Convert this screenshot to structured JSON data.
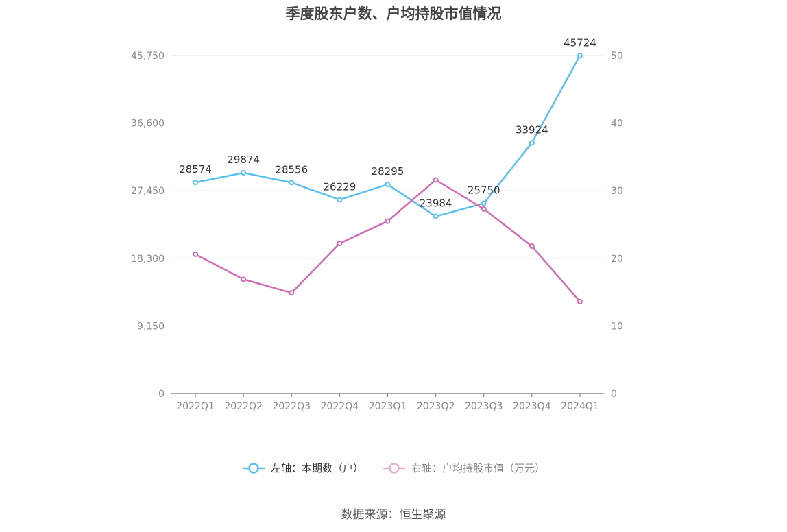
{
  "chart_data": {
    "type": "line",
    "title": "季度股东户数、户均持股市值情况",
    "categories": [
      "2022Q1",
      "2022Q2",
      "2022Q3",
      "2022Q4",
      "2023Q1",
      "2023Q2",
      "2023Q3",
      "2023Q4",
      "2024Q1"
    ],
    "left_axis": {
      "ticks": [
        "0",
        "9,150",
        "18,300",
        "27,450",
        "36,600",
        "45,750"
      ],
      "range": [
        0,
        45750
      ]
    },
    "right_axis": {
      "ticks": [
        "0",
        "10",
        "20",
        "30",
        "40",
        "50"
      ],
      "range": [
        0,
        50
      ]
    },
    "series": [
      {
        "name": "左轴：本期数（户）",
        "axis": "left",
        "color": "#5bc0f0",
        "values": [
          28574,
          29874,
          28556,
          26229,
          28295,
          23984,
          25750,
          33924,
          45724
        ],
        "show_labels": true
      },
      {
        "name": "右轴：户均持股市值（万元）",
        "axis": "right",
        "color": "#d46bb5",
        "values": [
          20.6,
          16.9,
          14.9,
          22.2,
          25.5,
          31.6,
          27.3,
          21.8,
          13.6
        ],
        "show_labels": false
      }
    ],
    "grid": true,
    "legend_position": "bottom"
  },
  "footer": {
    "source": "数据来源：恒生聚源"
  },
  "colors": {
    "grid": "#e3e6ef",
    "axis": "#6e7079",
    "tick_text": "#8a8a8a",
    "label_text": "#333333"
  }
}
